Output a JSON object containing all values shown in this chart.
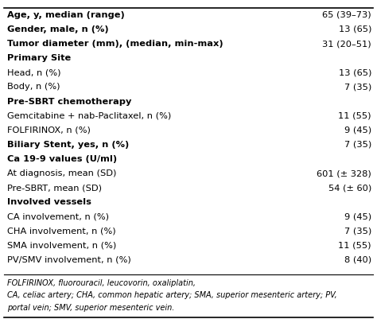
{
  "rows": [
    {
      "label": "Age, y, median (range)",
      "value": "65 (39–73)",
      "bold_label": true
    },
    {
      "label": "Gender, male, n (%)",
      "value": "13 (65)",
      "bold_label": true
    },
    {
      "label": "Tumor diameter (mm), (median, min-max)",
      "value": "31 (20–51)",
      "bold_label": true
    },
    {
      "label": "Primary Site",
      "value": "",
      "bold_label": true
    },
    {
      "label": "Head, n (%)",
      "value": "13 (65)",
      "bold_label": false
    },
    {
      "label": "Body, n (%)",
      "value": "7 (35)",
      "bold_label": false
    },
    {
      "label": "Pre-SBRT chemotherapy",
      "value": "",
      "bold_label": true
    },
    {
      "label": "Gemcitabine + nab-Paclitaxel, n (%)",
      "value": "11 (55)",
      "bold_label": false
    },
    {
      "label": "FOLFIRINOX, n (%)",
      "value": "9 (45)",
      "bold_label": false
    },
    {
      "label": "Biliary Stent, yes, n (%)",
      "value": "7 (35)",
      "bold_label": true
    },
    {
      "label": "Ca 19-9 values (U/ml)",
      "value": "",
      "bold_label": true
    },
    {
      "label": "At diagnosis, mean (SD)",
      "value": "601 (± 328)",
      "bold_label": false
    },
    {
      "label": "Pre-SBRT, mean (SD)",
      "value": "54 (± 60)",
      "bold_label": false
    },
    {
      "label": "Involved vessels",
      "value": "",
      "bold_label": true
    },
    {
      "label": "CA involvement, n (%)",
      "value": "9 (45)",
      "bold_label": false
    },
    {
      "label": "CHA involvement, n (%)",
      "value": "7 (35)",
      "bold_label": false
    },
    {
      "label": "SMA involvement, n (%)",
      "value": "11 (55)",
      "bold_label": false
    },
    {
      "label": "PV/SMV involvement, n (%)",
      "value": "8 (40)",
      "bold_label": false
    }
  ],
  "footnotes": [
    "FOLFIRINOX, fluorouracil, leucovorin, oxaliplatin,",
    "CA, celiac artery; CHA, common hepatic artery; SMA, superior mesenteric artery; PV,",
    "portal vein; SMV, superior mesenteric vein."
  ],
  "bg_color": "#ffffff",
  "text_color": "#000000",
  "border_color": "#000000",
  "label_fontsize": 8.2,
  "value_fontsize": 8.2,
  "footnote_fontsize": 7.0
}
